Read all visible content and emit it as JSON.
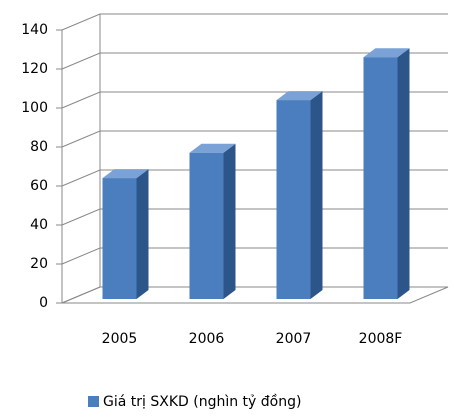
{
  "chart_data": {
    "type": "bar3d",
    "categories": [
      "2005",
      "2006",
      "2007",
      "2008F"
    ],
    "series": [
      {
        "name": "Giá trị SXKD (nghìn tỷ đồng)",
        "color": "#4a7ebf",
        "values": [
          62,
          75,
          102,
          124
        ]
      }
    ],
    "ylim": [
      0,
      140
    ],
    "yticks": [
      0,
      20,
      40,
      60,
      80,
      100,
      120,
      140
    ],
    "grid": true,
    "legend": "bottom"
  }
}
